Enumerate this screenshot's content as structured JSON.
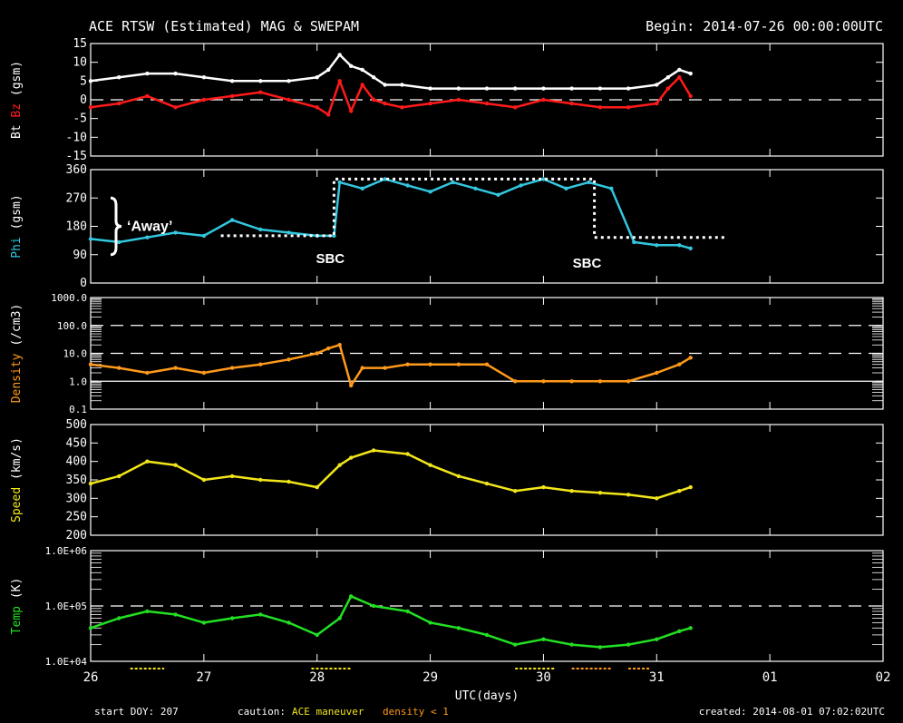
{
  "header": {
    "title": "ACE RTSW (Estimated) MAG & SWEPAM",
    "begin": "Begin: 2014-07-26 00:00:00UTC"
  },
  "footer": {
    "start_doy": "start DOY: 207",
    "caution": "caution:",
    "maneuver": "ACE maneuver",
    "density_lt1": "density < 1",
    "created": "created: 2014-08-01 07:02:02UTC"
  },
  "colors": {
    "background": "#000000",
    "axes": "#ffffff",
    "bt": "#ffffff",
    "bz": "#ff1a1a",
    "phi": "#33c7e0",
    "density": "#ff9a1a",
    "speed": "#f2e61a",
    "temp": "#22e022",
    "annotation": "#ffffff"
  },
  "chart_data": [
    {
      "type": "line",
      "panel": "magnetic field",
      "ylabel": "Bt  Bz  (gsm)",
      "ylabel_parts": [
        "Bt",
        "Bz",
        "(gsm)"
      ],
      "ylim": [
        -15,
        15
      ],
      "yticks": [
        "15",
        "10",
        "5",
        "0",
        "-5",
        "-10",
        "-15"
      ],
      "dashed_reference": [
        0
      ],
      "series": [
        {
          "name": "Bt",
          "color": "#ffffff",
          "x": [
            0,
            0.25,
            0.5,
            0.75,
            1.0,
            1.25,
            1.5,
            1.75,
            2.0,
            2.1,
            2.2,
            2.3,
            2.4,
            2.5,
            2.6,
            2.75,
            3.0,
            3.25,
            3.5,
            3.75,
            4.0,
            4.25,
            4.5,
            4.75,
            5.0,
            5.1,
            5.2,
            5.3
          ],
          "y": [
            5,
            6,
            7,
            7,
            6,
            5,
            5,
            5,
            6,
            8,
            12,
            9,
            8,
            6,
            4,
            4,
            3,
            3,
            3,
            3,
            3,
            3,
            3,
            3,
            4,
            6,
            8,
            7
          ]
        },
        {
          "name": "Bz",
          "color": "#ff1a1a",
          "x": [
            0,
            0.25,
            0.5,
            0.75,
            1.0,
            1.25,
            1.5,
            1.75,
            2.0,
            2.1,
            2.2,
            2.3,
            2.4,
            2.5,
            2.6,
            2.75,
            3.0,
            3.25,
            3.5,
            3.75,
            4.0,
            4.25,
            4.5,
            4.75,
            5.0,
            5.1,
            5.2,
            5.3
          ],
          "y": [
            -2,
            -1,
            1,
            -2,
            0,
            1,
            2,
            0,
            -2,
            -4,
            5,
            -3,
            4,
            0,
            -1,
            -2,
            -1,
            0,
            -1,
            -2,
            0,
            -1,
            -2,
            -2,
            -1,
            3,
            6,
            1
          ]
        }
      ]
    },
    {
      "type": "line",
      "panel": "phi",
      "ylabel": "Phi (gsm)",
      "ylim": [
        0,
        360
      ],
      "yticks": [
        "360",
        "270",
        "180",
        "90",
        "0"
      ],
      "series": [
        {
          "name": "Phi",
          "color": "#33c7e0",
          "x": [
            0,
            0.25,
            0.5,
            0.75,
            1.0,
            1.25,
            1.5,
            1.75,
            2.0,
            2.15,
            2.2,
            2.4,
            2.6,
            2.8,
            3.0,
            3.2,
            3.4,
            3.6,
            3.8,
            4.0,
            4.2,
            4.4,
            4.6,
            4.8,
            5.0,
            5.2,
            5.3
          ],
          "y": [
            140,
            130,
            145,
            160,
            150,
            200,
            170,
            160,
            150,
            150,
            320,
            300,
            330,
            310,
            290,
            320,
            300,
            280,
            310,
            330,
            300,
            320,
            300,
            130,
            120,
            120,
            110
          ]
        }
      ],
      "annotations": {
        "away_label": "‘Away’",
        "sbc_label_1": "SBC",
        "sbc_label_2": "SBC",
        "sector_levels": [
          {
            "x_from": 1.15,
            "x_to": 2.15,
            "y": 150
          },
          {
            "x_from": 2.15,
            "x_to": 4.45,
            "y": 330
          },
          {
            "x_from": 4.45,
            "x_to": 5.6,
            "y": 145
          }
        ]
      }
    },
    {
      "type": "line",
      "panel": "density",
      "ylabel": "Density (/cm3)",
      "yscale": "log",
      "ylim": [
        0.1,
        1000
      ],
      "yticks": [
        "1000.0",
        "100.0",
        "10.0",
        "1.0",
        "0.1"
      ],
      "dashed_reference": [
        100,
        10
      ],
      "solid_reference": [
        1
      ],
      "series": [
        {
          "name": "Density",
          "color": "#ff9a1a",
          "x": [
            0,
            0.25,
            0.5,
            0.75,
            1.0,
            1.25,
            1.5,
            1.75,
            2.0,
            2.1,
            2.2,
            2.3,
            2.4,
            2.6,
            2.8,
            3.0,
            3.25,
            3.5,
            3.75,
            4.0,
            4.25,
            4.5,
            4.75,
            5.0,
            5.2,
            5.3
          ],
          "y": [
            4,
            3,
            2,
            3,
            2,
            3,
            4,
            6,
            10,
            15,
            20,
            0.7,
            3,
            3,
            4,
            4,
            4,
            4,
            1,
            1,
            1,
            1,
            1,
            2,
            4,
            7
          ]
        }
      ]
    },
    {
      "type": "line",
      "panel": "speed",
      "ylabel": "Speed (km/s)",
      "ylim": [
        200,
        500
      ],
      "yticks": [
        "500",
        "450",
        "400",
        "350",
        "300",
        "250",
        "200"
      ],
      "series": [
        {
          "name": "Speed",
          "color": "#f2e61a",
          "x": [
            0,
            0.25,
            0.5,
            0.75,
            1.0,
            1.25,
            1.5,
            1.75,
            2.0,
            2.2,
            2.3,
            2.5,
            2.8,
            3.0,
            3.25,
            3.5,
            3.75,
            4.0,
            4.25,
            4.5,
            4.75,
            5.0,
            5.2,
            5.3
          ],
          "y": [
            340,
            360,
            400,
            390,
            350,
            360,
            350,
            345,
            330,
            390,
            410,
            430,
            420,
            390,
            360,
            340,
            320,
            330,
            320,
            315,
            310,
            300,
            320,
            330
          ]
        }
      ]
    },
    {
      "type": "line",
      "panel": "temperature",
      "ylabel": "Temp (K)",
      "yscale": "log",
      "ylim": [
        10000,
        1000000
      ],
      "yticks": [
        "1.0E+06",
        "1.0E+05",
        "1.0E+04"
      ],
      "dashed_reference": [
        100000
      ],
      "series": [
        {
          "name": "Temp",
          "color": "#22e022",
          "x": [
            0,
            0.25,
            0.5,
            0.75,
            1.0,
            1.25,
            1.5,
            1.75,
            2.0,
            2.2,
            2.3,
            2.5,
            2.8,
            3.0,
            3.25,
            3.5,
            3.75,
            4.0,
            4.25,
            4.5,
            4.75,
            5.0,
            5.2,
            5.3
          ],
          "y": [
            40000,
            60000,
            80000,
            70000,
            50000,
            60000,
            70000,
            50000,
            30000,
            60000,
            150000,
            100000,
            80000,
            50000,
            40000,
            30000,
            20000,
            25000,
            20000,
            18000,
            20000,
            25000,
            35000,
            40000
          ]
        }
      ]
    }
  ],
  "x_axis": {
    "xlabel": "UTC(days)",
    "xlim": [
      0,
      7
    ],
    "tick_labels": [
      "26",
      "27",
      "28",
      "29",
      "30",
      "31",
      "01",
      "02"
    ]
  },
  "maneuver_bars": [
    [
      0.35,
      0.65
    ],
    [
      1.95,
      2.3
    ],
    [
      3.75,
      4.1
    ]
  ],
  "density_lt1_bars": [
    [
      4.25,
      4.6
    ],
    [
      4.75,
      4.95
    ]
  ]
}
